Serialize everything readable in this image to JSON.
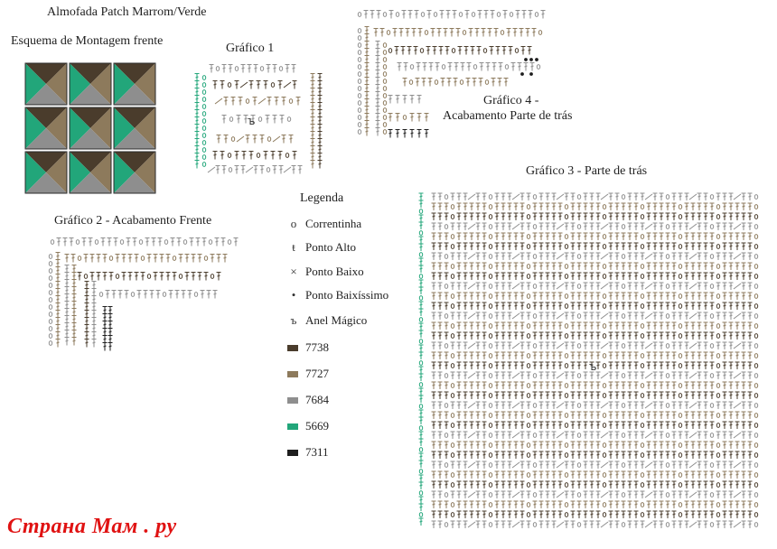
{
  "titles": {
    "main": "Almofada Patch Marrom/Verde",
    "scheme": "Esquema de Montagem frente",
    "graph1": "Gráfico 1",
    "graph2": "Gráfico 2 - Acabamento Frente",
    "graph3": "Gráfico 3 - Parte de trás",
    "graph4_line1": "Gráfico 4 -",
    "graph4_line2": "Acabamento Parte de trás"
  },
  "legend": {
    "title": "Legenda",
    "symbols": [
      {
        "symbol": "o",
        "label": "Correntinha"
      },
      {
        "symbol": "ŧ",
        "label": "Ponto Alto"
      },
      {
        "symbol": "×",
        "label": "Ponto Baixo"
      },
      {
        "symbol": "•",
        "label": "Ponto Baixíssimo"
      },
      {
        "symbol": "ъ",
        "label": "Anel Mágico"
      }
    ],
    "colors": [
      {
        "code": "7738",
        "color": "#4a3c2c"
      },
      {
        "code": "7727",
        "color": "#8d7a5c"
      },
      {
        "code": "7684",
        "color": "#8e8e8e"
      },
      {
        "code": "5669",
        "color": "#22a67a"
      },
      {
        "code": "7311",
        "color": "#1e1e1e"
      }
    ]
  },
  "palette": {
    "dark_brown": "#4a3c2c",
    "tan": "#8d7a5c",
    "gray": "#8e8e8e",
    "green": "#22a67a",
    "black": "#1e1e1e"
  },
  "watermark": "Страна Мам . ру"
}
